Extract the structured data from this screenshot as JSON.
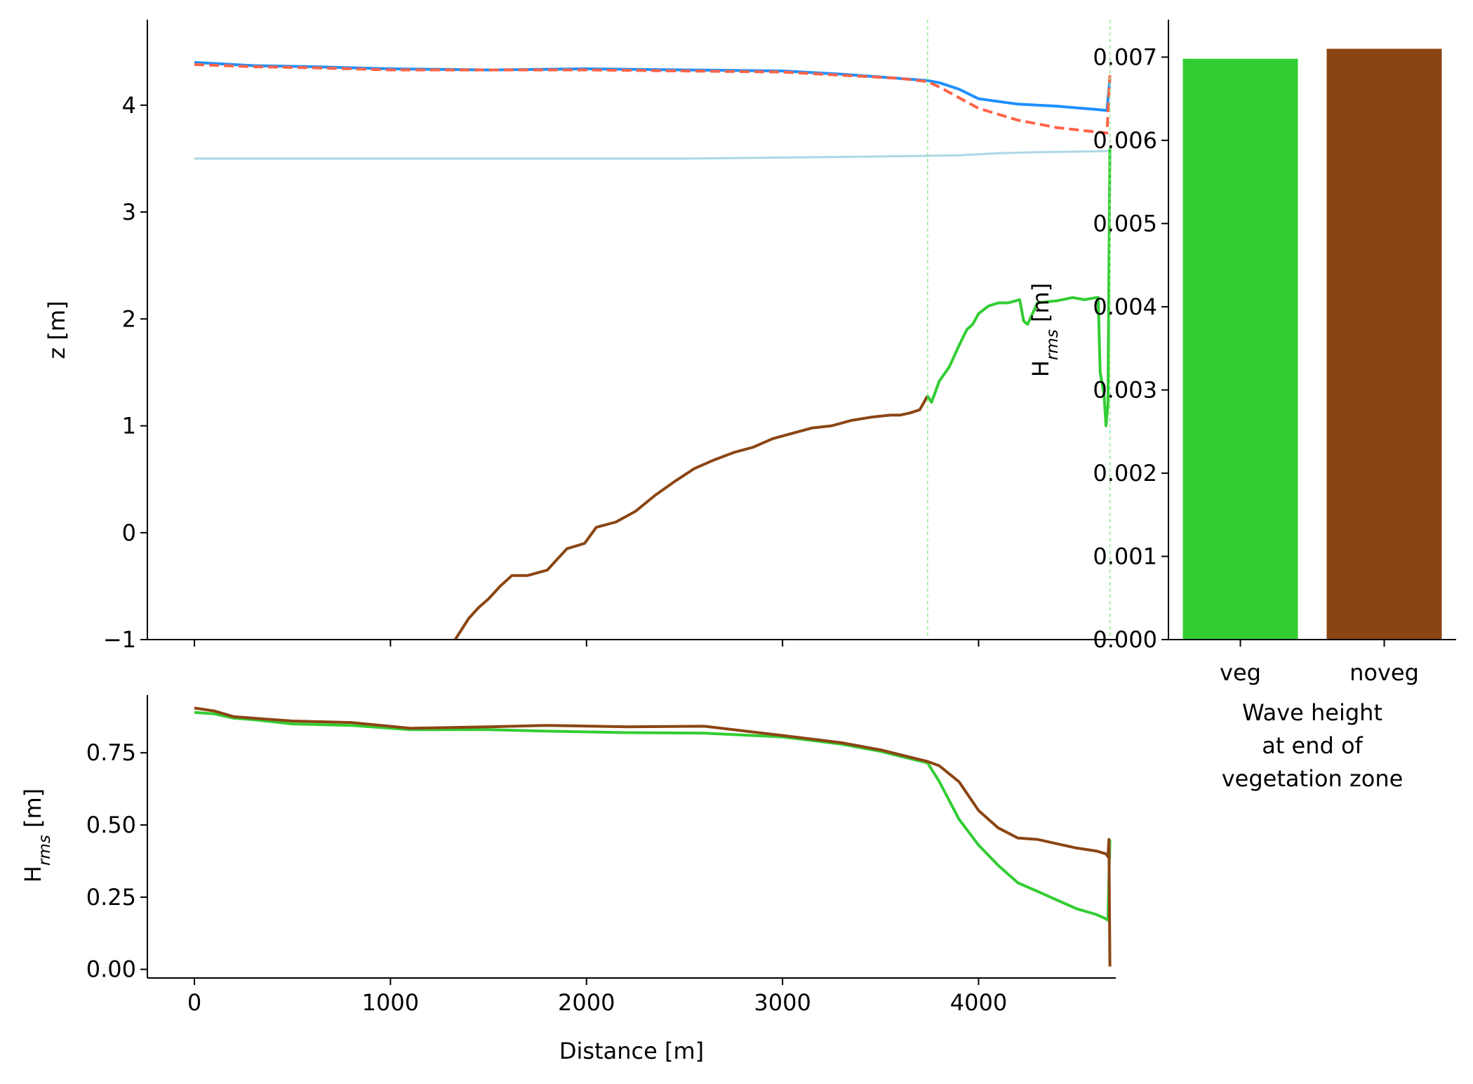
{
  "chart_data": [
    {
      "type": "line",
      "panel": "profile",
      "ylabel": "z [m]",
      "xlim": [
        -240,
        4700
      ],
      "ylim": [
        -1,
        4.8
      ],
      "yticks": [
        -1,
        0,
        1,
        2,
        3,
        4
      ],
      "ytick_labels": [
        "−1",
        "0",
        "1",
        "2",
        "3",
        "4"
      ],
      "xticks": [
        0,
        1000,
        2000,
        3000,
        4000
      ],
      "vlines": [
        3740,
        4670
      ],
      "series": [
        {
          "role": "water level (veg)",
          "color": "#1e90ff",
          "style": "solid",
          "x": [
            0,
            300,
            600,
            1000,
            1500,
            2000,
            2500,
            3000,
            3300,
            3600,
            3740,
            3800,
            3900,
            4000,
            4200,
            4400,
            4600,
            4655,
            4670
          ],
          "y": [
            4.4,
            4.37,
            4.36,
            4.34,
            4.33,
            4.34,
            4.33,
            4.32,
            4.29,
            4.25,
            4.23,
            4.21,
            4.15,
            4.06,
            4.01,
            3.99,
            3.96,
            3.95,
            4.25
          ]
        },
        {
          "role": "water level (noveg)",
          "color": "#ff6347",
          "style": "dashed",
          "x": [
            0,
            300,
            600,
            1000,
            1500,
            2000,
            2500,
            3000,
            3300,
            3600,
            3740,
            3800,
            3900,
            4000,
            4200,
            4400,
            4600,
            4655,
            4670
          ],
          "y": [
            4.38,
            4.36,
            4.35,
            4.33,
            4.33,
            4.33,
            4.32,
            4.31,
            4.28,
            4.25,
            4.22,
            4.17,
            4.07,
            3.97,
            3.86,
            3.79,
            3.75,
            3.74,
            4.28
          ]
        },
        {
          "role": "still water level",
          "color": "#add8e6",
          "style": "solid",
          "x": [
            0,
            1000,
            2000,
            2500,
            3000,
            3500,
            3900,
            4100,
            4300,
            4670
          ],
          "y": [
            3.5,
            3.5,
            3.5,
            3.5,
            3.51,
            3.52,
            3.53,
            3.55,
            3.56,
            3.57
          ]
        },
        {
          "role": "bed (non-vegetated)",
          "color": "#8b4513",
          "style": "solid",
          "x": [
            1330,
            1400,
            1450,
            1500,
            1560,
            1620,
            1700,
            1800,
            1850,
            1900,
            1990,
            2050,
            2150,
            2250,
            2350,
            2450,
            2550,
            2650,
            2750,
            2850,
            2950,
            3050,
            3150,
            3250,
            3350,
            3450,
            3550,
            3600,
            3650,
            3700,
            3740
          ],
          "y": [
            -1.0,
            -0.8,
            -0.7,
            -0.62,
            -0.5,
            -0.4,
            -0.4,
            -0.35,
            -0.25,
            -0.15,
            -0.1,
            0.05,
            0.1,
            0.2,
            0.35,
            0.48,
            0.6,
            0.68,
            0.75,
            0.8,
            0.88,
            0.93,
            0.98,
            1.0,
            1.05,
            1.08,
            1.1,
            1.1,
            1.12,
            1.15,
            1.28
          ]
        },
        {
          "role": "bed (vegetated)",
          "color": "#32cd32",
          "style": "solid",
          "x": [
            3740,
            3760,
            3800,
            3850,
            3900,
            3940,
            3970,
            4000,
            4050,
            4100,
            4150,
            4210,
            4230,
            4250,
            4300,
            4400,
            4480,
            4540,
            4600,
            4610,
            4620,
            4640,
            4650,
            4660,
            4670
          ],
          "y": [
            1.28,
            1.22,
            1.42,
            1.55,
            1.75,
            1.9,
            1.95,
            2.05,
            2.12,
            2.15,
            2.15,
            2.18,
            1.98,
            1.95,
            2.15,
            2.17,
            2.2,
            2.18,
            2.2,
            2.2,
            1.5,
            1.3,
            1.0,
            1.2,
            3.6
          ]
        }
      ]
    },
    {
      "type": "line",
      "panel": "wave height",
      "xlabel": "Distance [m]",
      "ylabel_main": "H",
      "ylabel_sub": "rms",
      "ylabel_tail": " [m]",
      "xlim": [
        -240,
        4700
      ],
      "ylim": [
        -0.03,
        0.95
      ],
      "yticks": [
        0.0,
        0.25,
        0.5,
        0.75
      ],
      "ytick_labels": [
        "0.00",
        "0.25",
        "0.50",
        "0.75"
      ],
      "xticks": [
        0,
        1000,
        2000,
        3000,
        4000
      ],
      "xtick_labels": [
        "0",
        "1000",
        "2000",
        "3000",
        "4000"
      ],
      "series": [
        {
          "role": "Hrms (veg)",
          "color": "#32cd32",
          "x": [
            0,
            100,
            200,
            300,
            500,
            800,
            1100,
            1500,
            1800,
            2200,
            2600,
            3000,
            3300,
            3500,
            3650,
            3740,
            3800,
            3900,
            4000,
            4100,
            4200,
            4300,
            4400,
            4500,
            4600,
            4650,
            4660,
            4670
          ],
          "y": [
            0.89,
            0.885,
            0.87,
            0.865,
            0.85,
            0.845,
            0.83,
            0.83,
            0.825,
            0.82,
            0.818,
            0.805,
            0.78,
            0.755,
            0.73,
            0.715,
            0.65,
            0.52,
            0.43,
            0.36,
            0.3,
            0.27,
            0.24,
            0.21,
            0.19,
            0.175,
            0.17,
            0.45
          ]
        },
        {
          "role": "Hrms (noveg)",
          "color": "#8b4513",
          "x": [
            0,
            100,
            200,
            300,
            500,
            800,
            1100,
            1500,
            1800,
            2200,
            2600,
            3000,
            3300,
            3500,
            3650,
            3740,
            3800,
            3900,
            4000,
            4100,
            4200,
            4300,
            4400,
            4500,
            4600,
            4650,
            4660,
            4665,
            4670
          ],
          "y": [
            0.905,
            0.895,
            0.875,
            0.87,
            0.86,
            0.855,
            0.835,
            0.84,
            0.845,
            0.84,
            0.842,
            0.81,
            0.785,
            0.76,
            0.735,
            0.72,
            0.705,
            0.65,
            0.55,
            0.49,
            0.455,
            0.45,
            0.435,
            0.42,
            0.41,
            0.4,
            0.39,
            0.45,
            0.01
          ]
        }
      ]
    },
    {
      "type": "bar",
      "panel": "end of vegetation zone",
      "categories": [
        "veg",
        "noveg"
      ],
      "values": [
        0.00698,
        0.0071
      ],
      "colors": [
        "#32cd32",
        "#8b4513"
      ],
      "xlabel_lines": [
        "Wave height",
        "at end of",
        "vegetation zone"
      ],
      "ylabel_main": "H",
      "ylabel_sub": "rms",
      "ylabel_tail": " [m]",
      "ylim": [
        0,
        0.00745
      ],
      "yticks": [
        0.0,
        0.001,
        0.002,
        0.003,
        0.004,
        0.005,
        0.006,
        0.007
      ],
      "ytick_labels": [
        "0.000",
        "0.001",
        "0.002",
        "0.003",
        "0.004",
        "0.005",
        "0.006",
        "0.007"
      ]
    }
  ]
}
